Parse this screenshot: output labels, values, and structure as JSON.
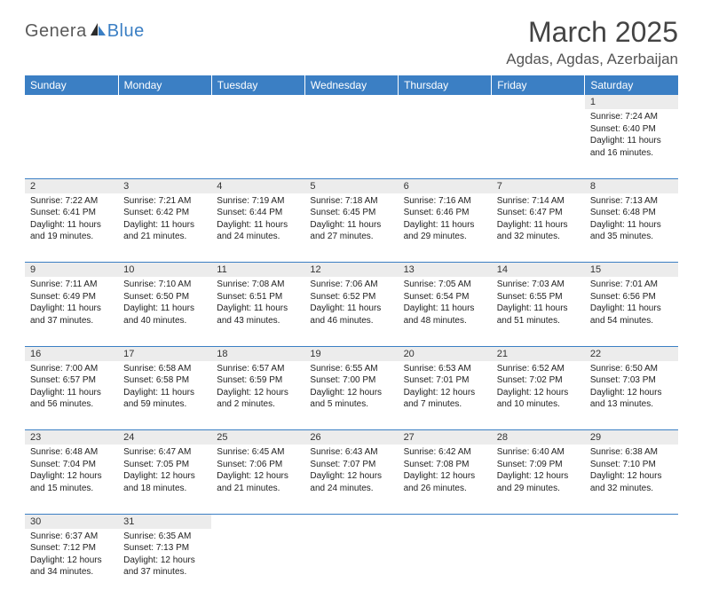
{
  "logo": {
    "text1": "Genera",
    "text2": "Blue"
  },
  "title": "March 2025",
  "location": "Agdas, Agdas, Azerbaijan",
  "colors": {
    "header_bg": "#3b7fc4",
    "header_text": "#ffffff",
    "daynum_bg": "#ececec",
    "border": "#3b7fc4",
    "logo_gray": "#5a5a5a",
    "logo_blue": "#3b7fc4"
  },
  "day_headers": [
    "Sunday",
    "Monday",
    "Tuesday",
    "Wednesday",
    "Thursday",
    "Friday",
    "Saturday"
  ],
  "weeks": [
    [
      null,
      null,
      null,
      null,
      null,
      null,
      {
        "n": "1",
        "sr": "Sunrise: 7:24 AM",
        "ss": "Sunset: 6:40 PM",
        "d1": "Daylight: 11 hours",
        "d2": "and 16 minutes."
      }
    ],
    [
      {
        "n": "2",
        "sr": "Sunrise: 7:22 AM",
        "ss": "Sunset: 6:41 PM",
        "d1": "Daylight: 11 hours",
        "d2": "and 19 minutes."
      },
      {
        "n": "3",
        "sr": "Sunrise: 7:21 AM",
        "ss": "Sunset: 6:42 PM",
        "d1": "Daylight: 11 hours",
        "d2": "and 21 minutes."
      },
      {
        "n": "4",
        "sr": "Sunrise: 7:19 AM",
        "ss": "Sunset: 6:44 PM",
        "d1": "Daylight: 11 hours",
        "d2": "and 24 minutes."
      },
      {
        "n": "5",
        "sr": "Sunrise: 7:18 AM",
        "ss": "Sunset: 6:45 PM",
        "d1": "Daylight: 11 hours",
        "d2": "and 27 minutes."
      },
      {
        "n": "6",
        "sr": "Sunrise: 7:16 AM",
        "ss": "Sunset: 6:46 PM",
        "d1": "Daylight: 11 hours",
        "d2": "and 29 minutes."
      },
      {
        "n": "7",
        "sr": "Sunrise: 7:14 AM",
        "ss": "Sunset: 6:47 PM",
        "d1": "Daylight: 11 hours",
        "d2": "and 32 minutes."
      },
      {
        "n": "8",
        "sr": "Sunrise: 7:13 AM",
        "ss": "Sunset: 6:48 PM",
        "d1": "Daylight: 11 hours",
        "d2": "and 35 minutes."
      }
    ],
    [
      {
        "n": "9",
        "sr": "Sunrise: 7:11 AM",
        "ss": "Sunset: 6:49 PM",
        "d1": "Daylight: 11 hours",
        "d2": "and 37 minutes."
      },
      {
        "n": "10",
        "sr": "Sunrise: 7:10 AM",
        "ss": "Sunset: 6:50 PM",
        "d1": "Daylight: 11 hours",
        "d2": "and 40 minutes."
      },
      {
        "n": "11",
        "sr": "Sunrise: 7:08 AM",
        "ss": "Sunset: 6:51 PM",
        "d1": "Daylight: 11 hours",
        "d2": "and 43 minutes."
      },
      {
        "n": "12",
        "sr": "Sunrise: 7:06 AM",
        "ss": "Sunset: 6:52 PM",
        "d1": "Daylight: 11 hours",
        "d2": "and 46 minutes."
      },
      {
        "n": "13",
        "sr": "Sunrise: 7:05 AM",
        "ss": "Sunset: 6:54 PM",
        "d1": "Daylight: 11 hours",
        "d2": "and 48 minutes."
      },
      {
        "n": "14",
        "sr": "Sunrise: 7:03 AM",
        "ss": "Sunset: 6:55 PM",
        "d1": "Daylight: 11 hours",
        "d2": "and 51 minutes."
      },
      {
        "n": "15",
        "sr": "Sunrise: 7:01 AM",
        "ss": "Sunset: 6:56 PM",
        "d1": "Daylight: 11 hours",
        "d2": "and 54 minutes."
      }
    ],
    [
      {
        "n": "16",
        "sr": "Sunrise: 7:00 AM",
        "ss": "Sunset: 6:57 PM",
        "d1": "Daylight: 11 hours",
        "d2": "and 56 minutes."
      },
      {
        "n": "17",
        "sr": "Sunrise: 6:58 AM",
        "ss": "Sunset: 6:58 PM",
        "d1": "Daylight: 11 hours",
        "d2": "and 59 minutes."
      },
      {
        "n": "18",
        "sr": "Sunrise: 6:57 AM",
        "ss": "Sunset: 6:59 PM",
        "d1": "Daylight: 12 hours",
        "d2": "and 2 minutes."
      },
      {
        "n": "19",
        "sr": "Sunrise: 6:55 AM",
        "ss": "Sunset: 7:00 PM",
        "d1": "Daylight: 12 hours",
        "d2": "and 5 minutes."
      },
      {
        "n": "20",
        "sr": "Sunrise: 6:53 AM",
        "ss": "Sunset: 7:01 PM",
        "d1": "Daylight: 12 hours",
        "d2": "and 7 minutes."
      },
      {
        "n": "21",
        "sr": "Sunrise: 6:52 AM",
        "ss": "Sunset: 7:02 PM",
        "d1": "Daylight: 12 hours",
        "d2": "and 10 minutes."
      },
      {
        "n": "22",
        "sr": "Sunrise: 6:50 AM",
        "ss": "Sunset: 7:03 PM",
        "d1": "Daylight: 12 hours",
        "d2": "and 13 minutes."
      }
    ],
    [
      {
        "n": "23",
        "sr": "Sunrise: 6:48 AM",
        "ss": "Sunset: 7:04 PM",
        "d1": "Daylight: 12 hours",
        "d2": "and 15 minutes."
      },
      {
        "n": "24",
        "sr": "Sunrise: 6:47 AM",
        "ss": "Sunset: 7:05 PM",
        "d1": "Daylight: 12 hours",
        "d2": "and 18 minutes."
      },
      {
        "n": "25",
        "sr": "Sunrise: 6:45 AM",
        "ss": "Sunset: 7:06 PM",
        "d1": "Daylight: 12 hours",
        "d2": "and 21 minutes."
      },
      {
        "n": "26",
        "sr": "Sunrise: 6:43 AM",
        "ss": "Sunset: 7:07 PM",
        "d1": "Daylight: 12 hours",
        "d2": "and 24 minutes."
      },
      {
        "n": "27",
        "sr": "Sunrise: 6:42 AM",
        "ss": "Sunset: 7:08 PM",
        "d1": "Daylight: 12 hours",
        "d2": "and 26 minutes."
      },
      {
        "n": "28",
        "sr": "Sunrise: 6:40 AM",
        "ss": "Sunset: 7:09 PM",
        "d1": "Daylight: 12 hours",
        "d2": "and 29 minutes."
      },
      {
        "n": "29",
        "sr": "Sunrise: 6:38 AM",
        "ss": "Sunset: 7:10 PM",
        "d1": "Daylight: 12 hours",
        "d2": "and 32 minutes."
      }
    ],
    [
      {
        "n": "30",
        "sr": "Sunrise: 6:37 AM",
        "ss": "Sunset: 7:12 PM",
        "d1": "Daylight: 12 hours",
        "d2": "and 34 minutes."
      },
      {
        "n": "31",
        "sr": "Sunrise: 6:35 AM",
        "ss": "Sunset: 7:13 PM",
        "d1": "Daylight: 12 hours",
        "d2": "and 37 minutes."
      },
      null,
      null,
      null,
      null,
      null
    ]
  ]
}
